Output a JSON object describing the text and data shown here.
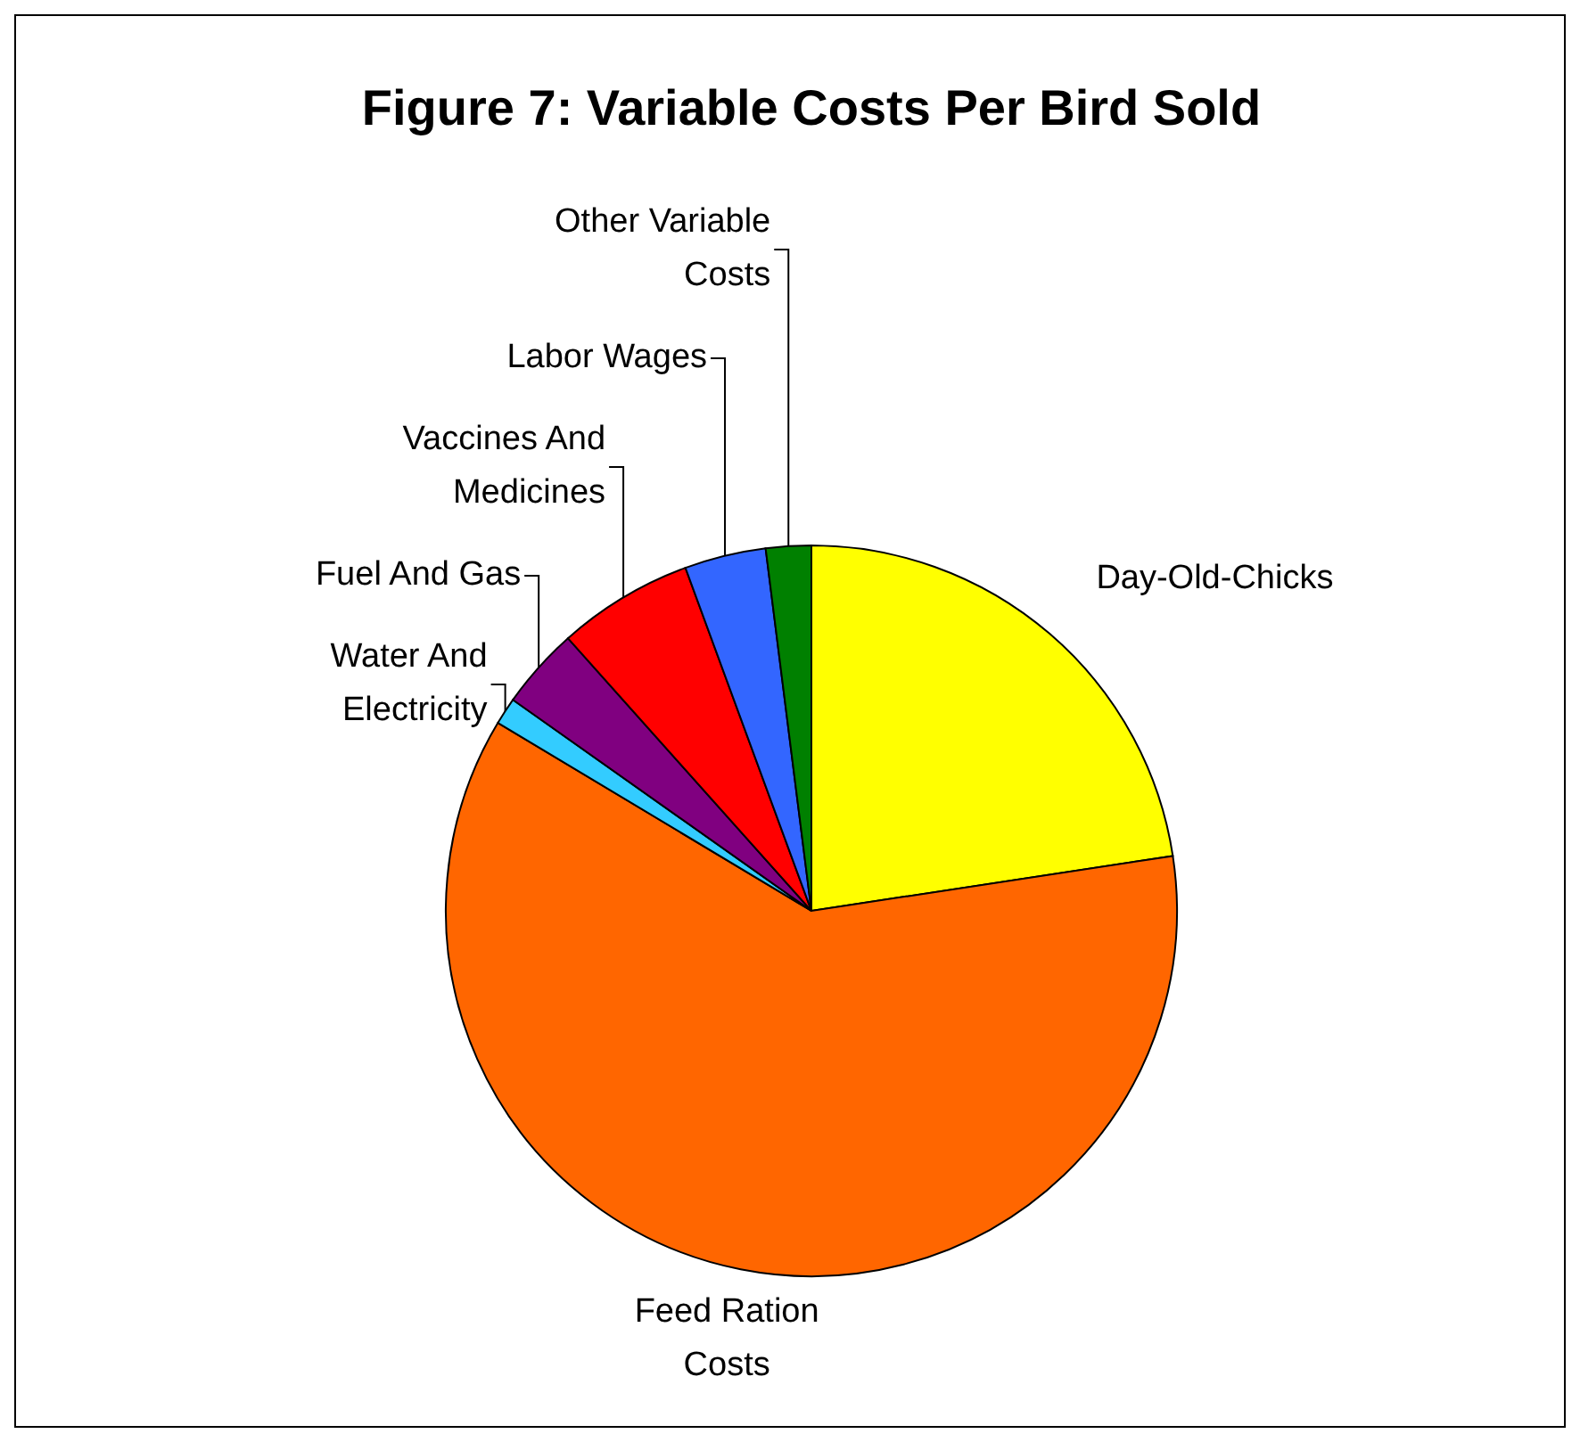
{
  "chart_data": {
    "type": "pie",
    "title": "Figure 7:  Variable Costs Per Bird Sold",
    "categories": [
      "Day-Old-Chicks",
      "Feed Ration Costs",
      "Water And Electricity",
      "Fuel And Gas",
      "Vaccines And Medicines",
      "Labor Wages",
      "Other Variable Costs"
    ],
    "values": [
      22.6,
      61,
      1.2,
      3.6,
      6,
      3.6,
      2
    ],
    "colors": [
      "#ffff00",
      "#ff6600",
      "#33ccff",
      "#800080",
      "#ff0000",
      "#3366ff",
      "#008000"
    ]
  }
}
